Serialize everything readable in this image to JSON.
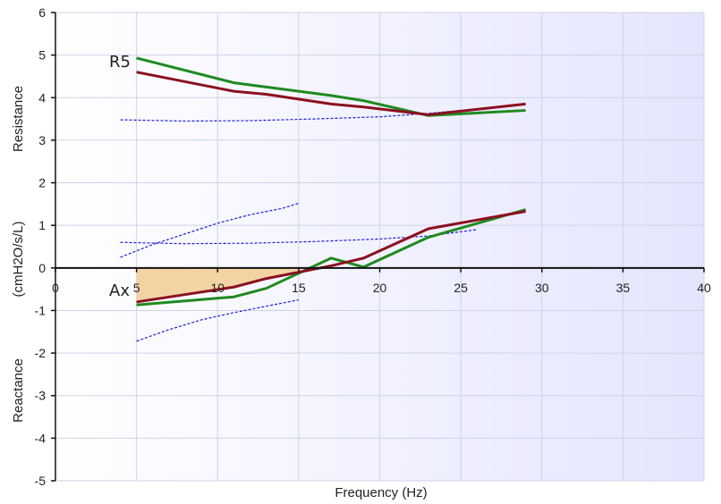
{
  "chart_data": {
    "type": "line",
    "xlabel": "Frequency (Hz)",
    "ylabel_parts": [
      "Reactance",
      "(cmH2O/s/L)",
      "Resistance"
    ],
    "xlim": [
      0,
      40
    ],
    "ylim": [
      -5,
      6
    ],
    "x_ticks": [
      "0",
      "5",
      "10",
      "15",
      "20",
      "25",
      "30",
      "35",
      "40"
    ],
    "y_ticks": [
      "-5",
      "-4",
      "-3",
      "-2",
      "-1",
      "0",
      "1",
      "2",
      "3",
      "4",
      "5",
      "6"
    ],
    "grid": true,
    "annotations": [
      "R5",
      "Ax"
    ],
    "colors": {
      "green": "#1f8a1f",
      "red": "#8b1020",
      "reference": "#1c1cd8",
      "ax_fill": "#f3d3a3",
      "grid": "#cfd3e6",
      "background_tint": "#e7e8ff"
    },
    "series": [
      {
        "group": "resistance",
        "color": "green",
        "points": [
          [
            5,
            4.93
          ],
          [
            11,
            4.35
          ],
          [
            13,
            4.25
          ],
          [
            17,
            4.05
          ],
          [
            19,
            3.93
          ],
          [
            23,
            3.58
          ],
          [
            29,
            3.7
          ]
        ]
      },
      {
        "group": "resistance",
        "color": "red",
        "points": [
          [
            5,
            4.6
          ],
          [
            11,
            4.15
          ],
          [
            13,
            4.08
          ],
          [
            17,
            3.85
          ],
          [
            19,
            3.78
          ],
          [
            23,
            3.6
          ],
          [
            29,
            3.85
          ]
        ]
      },
      {
        "group": "reactance",
        "color": "green",
        "points": [
          [
            5,
            -0.87
          ],
          [
            11,
            -0.68
          ],
          [
            13,
            -0.48
          ],
          [
            17,
            0.23
          ],
          [
            19,
            0.02
          ],
          [
            23,
            0.72
          ],
          [
            29,
            1.37
          ]
        ]
      },
      {
        "group": "reactance",
        "color": "red",
        "points": [
          [
            5,
            -0.8
          ],
          [
            11,
            -0.45
          ],
          [
            13,
            -0.25
          ],
          [
            17,
            0.05
          ],
          [
            19,
            0.23
          ],
          [
            23,
            0.92
          ],
          [
            29,
            1.33
          ]
        ]
      }
    ],
    "reference_curves": [
      {
        "group": "resistance",
        "points": [
          [
            4,
            3.48
          ],
          [
            8,
            3.45
          ],
          [
            12,
            3.46
          ],
          [
            16,
            3.5
          ],
          [
            20,
            3.55
          ],
          [
            23,
            3.63
          ],
          [
            25,
            3.7
          ]
        ]
      },
      {
        "group": "reactance",
        "points": [
          [
            4,
            0.6
          ],
          [
            8,
            0.57
          ],
          [
            12,
            0.58
          ],
          [
            16,
            0.62
          ],
          [
            20,
            0.68
          ],
          [
            23,
            0.75
          ],
          [
            26,
            0.9
          ]
        ]
      },
      {
        "group": "reactance",
        "points": [
          [
            4,
            0.25
          ],
          [
            6,
            0.55
          ],
          [
            8,
            0.8
          ],
          [
            10,
            1.05
          ],
          [
            12,
            1.25
          ],
          [
            14,
            1.4
          ],
          [
            15,
            1.52
          ]
        ]
      },
      {
        "group": "reactance",
        "points": [
          [
            5,
            -1.72
          ],
          [
            7,
            -1.45
          ],
          [
            9,
            -1.22
          ],
          [
            11,
            -1.05
          ],
          [
            13,
            -0.9
          ],
          [
            15,
            -0.75
          ]
        ]
      }
    ],
    "ax_area": {
      "points": [
        [
          5,
          -0.82
        ],
        [
          11,
          -0.45
        ],
        [
          13,
          -0.28
        ],
        [
          15.5,
          0
        ]
      ]
    }
  }
}
